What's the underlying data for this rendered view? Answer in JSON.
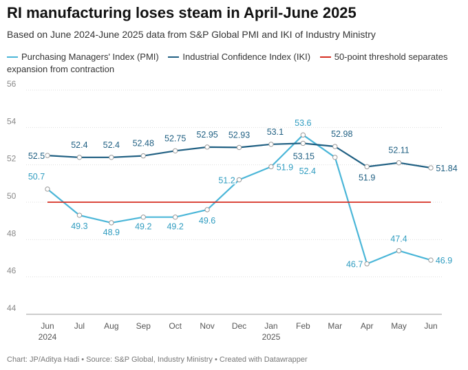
{
  "title": "RI manufacturing loses steam in April-June 2025",
  "subtitle": "Based on June 2024-June 2025 data from S&P Global PMI and IKI of Industry Ministry",
  "footer": "Chart: JP/Aditya Hadi • Source: S&P Global, Industry Ministry • Created with Datawrapper",
  "colors": {
    "pmi": "#4ab6d8",
    "iki": "#1f5f82",
    "threshold": "#d62d20",
    "grid": "#dddddd",
    "axis_text": "#888888",
    "pmi_label": "#2f9cc0",
    "iki_label": "#1f5f82"
  },
  "legend": [
    {
      "label": "Purchasing Managers' Index (PMI)",
      "color": "#4ab6d8"
    },
    {
      "label": "Industrial Confidence Index (IKI)",
      "color": "#1f5f82"
    },
    {
      "label": "50-point threshold separates expansion from contraction",
      "color": "#d62d20"
    }
  ],
  "chart_data": {
    "type": "line",
    "title": "RI manufacturing loses steam in April-June 2025",
    "categories": [
      "Jun",
      "Jul",
      "Aug",
      "Sep",
      "Oct",
      "Nov",
      "Dec",
      "Jan",
      "Feb",
      "Mar",
      "Apr",
      "May",
      "Jun"
    ],
    "category_sublabels": [
      "2024",
      "",
      "",
      "",
      "",
      "",
      "",
      "2025",
      "",
      "",
      "",
      "",
      ""
    ],
    "ylim": [
      44,
      56
    ],
    "yticks": [
      44,
      46,
      48,
      50,
      52,
      54,
      56
    ],
    "grid": true,
    "series": [
      {
        "name": "Purchasing Managers' Index (PMI)",
        "key": "pmi",
        "values": [
          50.7,
          49.3,
          48.9,
          49.2,
          49.2,
          49.6,
          51.2,
          51.9,
          53.6,
          52.4,
          46.7,
          47.4,
          46.9
        ],
        "value_labels": [
          "50.7",
          "49.3",
          "48.9",
          "49.2",
          "49.2",
          "49.6",
          "51.2",
          "51.9",
          "53.6",
          "52.4",
          "46.7",
          "47.4",
          "46.9"
        ]
      },
      {
        "name": "Industrial Confidence Index (IKI)",
        "key": "iki",
        "values": [
          52.5,
          52.4,
          52.4,
          52.48,
          52.75,
          52.95,
          52.93,
          53.1,
          53.15,
          52.98,
          51.9,
          52.11,
          51.84
        ],
        "value_labels": [
          "52.5",
          "52.4",
          "52.4",
          "52.48",
          "52.75",
          "52.95",
          "52.93",
          "53.1",
          "53.15",
          "52.98",
          "51.9",
          "52.11",
          "51.84"
        ]
      },
      {
        "name": "50-point threshold separates expansion from contraction",
        "key": "threshold",
        "values": [
          50,
          50,
          50,
          50,
          50,
          50,
          50,
          50,
          50,
          50,
          50,
          50,
          50
        ]
      }
    ]
  }
}
